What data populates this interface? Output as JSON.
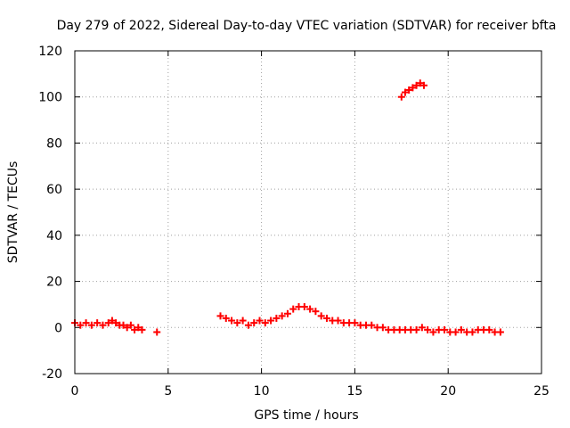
{
  "chart_data": {
    "type": "scatter",
    "title": "Day 279 of 2022, Sidereal Day-to-day VTEC variation (SDTVAR) for receiver bfta",
    "xlabel": "GPS time / hours",
    "ylabel": "SDTVAR / TECUs",
    "xlim": [
      0,
      25
    ],
    "ylim": [
      -20,
      120
    ],
    "xticks": [
      0,
      5,
      10,
      15,
      20,
      25
    ],
    "yticks": [
      -20,
      0,
      20,
      40,
      60,
      80,
      100,
      120
    ],
    "grid": true,
    "marker": "plus",
    "color": "#ff0000",
    "series": [
      {
        "name": "SDTVAR",
        "x": [
          0.0,
          0.3,
          0.6,
          0.9,
          1.2,
          1.5,
          1.8,
          2.0,
          2.2,
          2.4,
          2.6,
          2.8,
          3.0,
          3.2,
          3.4,
          3.6,
          4.4,
          7.8,
          8.1,
          8.4,
          8.7,
          9.0,
          9.3,
          9.6,
          9.9,
          10.2,
          10.5,
          10.8,
          11.1,
          11.4,
          11.7,
          12.0,
          12.3,
          12.6,
          12.9,
          13.2,
          13.5,
          13.8,
          14.1,
          14.4,
          14.7,
          15.0,
          15.3,
          15.6,
          15.9,
          16.2,
          16.5,
          16.8,
          17.1,
          17.4,
          17.7,
          18.0,
          18.3,
          18.6,
          18.9,
          19.2,
          19.5,
          19.8,
          20.1,
          20.4,
          20.7,
          21.0,
          21.3,
          21.6,
          21.9,
          22.2,
          22.5,
          22.8,
          17.5,
          17.7,
          17.9,
          18.1,
          18.3,
          18.5,
          18.7
        ],
        "y": [
          2,
          1,
          2,
          1,
          2,
          1,
          2,
          3,
          2,
          1,
          1,
          0,
          1,
          -1,
          0,
          -1,
          -2,
          5,
          4,
          3,
          2,
          3,
          1,
          2,
          3,
          2,
          3,
          4,
          5,
          6,
          8,
          9,
          9,
          8,
          7,
          5,
          4,
          3,
          3,
          2,
          2,
          2,
          1,
          1,
          1,
          0,
          0,
          -1,
          -1,
          -1,
          -1,
          -1,
          -1,
          0,
          -1,
          -2,
          -1,
          -1,
          -2,
          -2,
          -1,
          -2,
          -2,
          -1,
          -1,
          -1,
          -2,
          -2,
          100,
          102,
          103,
          104,
          105,
          106,
          105
        ]
      }
    ]
  }
}
